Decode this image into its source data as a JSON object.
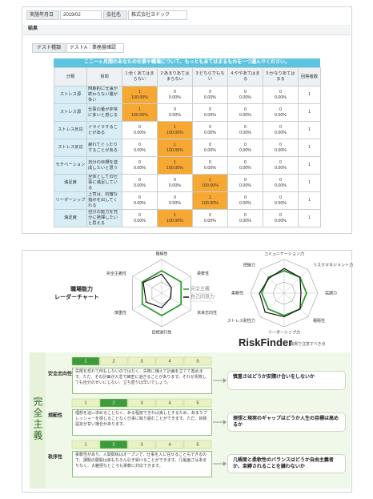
{
  "header": {
    "date_label": "実施年月日",
    "date": "2019/02",
    "company_label": "会社名",
    "company": "株式会社ヨドック"
  },
  "section_label": "結果",
  "test": {
    "label": "テスト種類",
    "value": "テストA：業務量確認"
  },
  "table": {
    "title": "ここ一ヶ月間のあなたの仕事や職場について、もっともあてはまるものを一つ選んでください。",
    "columns": [
      "分類",
      "質問",
      "1:全くあてはまらない",
      "2:あまりあてはまらない",
      "3:どちらでもない",
      "4:ややあてはまる",
      "5:かなりあてはまる",
      "回答者数"
    ],
    "rows": [
      {
        "category": "ストレス源",
        "question": "時期的に仕事が終わらない量が多い",
        "counts": [
          1,
          0,
          0,
          0,
          0
        ],
        "percents": [
          "100.00%",
          "0.00%",
          "0.00%",
          "0.00%",
          "0.00%"
        ],
        "respondents": 1
      },
      {
        "category": "ストレス源",
        "question": "仕事の量が非常に多いと感じる",
        "counts": [
          1,
          0,
          0,
          0,
          0
        ],
        "percents": [
          "100.00%",
          "0.00%",
          "0.00%",
          "0.00%",
          "0.00%"
        ],
        "respondents": 1
      },
      {
        "category": "ストレス反応",
        "question": "イライラすることがある",
        "counts": [
          0,
          1,
          0,
          0,
          0
        ],
        "percents": [
          "0.00%",
          "100.00%",
          "0.00%",
          "0.00%",
          "0.00%"
        ],
        "respondents": 1
      },
      {
        "category": "ストレス反応",
        "question": "疲れてぐったりすることがある",
        "counts": [
          0,
          1,
          0,
          0,
          0
        ],
        "percents": [
          "0.00%",
          "100.00%",
          "0.00%",
          "0.00%",
          "0.00%"
        ],
        "respondents": 1
      },
      {
        "category": "モチベーション",
        "question": "自分の目標を達成したいと思う",
        "counts": [
          0,
          1,
          0,
          0,
          0
        ],
        "percents": [
          "0.00%",
          "100.00%",
          "0.00%",
          "0.00%",
          "0.00%"
        ],
        "respondents": 1
      },
      {
        "category": "満足度",
        "question": "全体としての仕事に満足している",
        "counts": [
          0,
          0,
          1,
          0,
          0
        ],
        "percents": [
          "0.00%",
          "0.00%",
          "100.00%",
          "0.00%",
          "0.00%"
        ],
        "respondents": 1
      },
      {
        "category": "リーダーシップ",
        "question": "上司は、的確な指示を出してくれる",
        "counts": [
          0,
          0,
          1,
          0,
          0
        ],
        "percents": [
          "0.00%",
          "0.00%",
          "100.00%",
          "0.00%",
          "0.00%"
        ],
        "respondents": 1
      },
      {
        "category": "満足度",
        "question": "自分の能力を充分に発揮したいと思える",
        "counts": [
          0,
          1,
          0,
          0,
          0
        ],
        "percents": [
          "0.00%",
          "100.00%",
          "0.00%",
          "0.00%",
          "0.00%"
        ],
        "respondents": 1
      }
    ]
  },
  "chart_data": [
    {
      "type": "radar",
      "title": [
        "職場能力",
        "レーダーチャート"
      ],
      "categories": [
        "積極性",
        "柔軟性",
        "未来志向性",
        "目標遂行性",
        "慎重性",
        "完全主義性"
      ],
      "rlim": [
        0,
        3
      ],
      "rticks": [
        1,
        2,
        3
      ],
      "legend": true,
      "series": [
        {
          "name": "完全主義",
          "color": "#2e9b2e",
          "values": [
            2,
            2,
            2,
            2,
            2,
            2
          ]
        },
        {
          "name": "自己同意力",
          "color": "#111111",
          "values": [
            1.7,
            1.0,
            0.9,
            1.3,
            1.6,
            1.9
          ]
        }
      ]
    },
    {
      "type": "radar",
      "categories": [
        "コミュニケーション力",
        "リスクマネジメント力",
        "協調力",
        "積極性",
        "リーダーシップ力",
        "ストレス耐性力",
        "柔軟性",
        "把握力"
      ],
      "rlim": [
        0,
        3
      ],
      "rticks": [
        1,
        2,
        3
      ],
      "legend": false,
      "series": [
        {
          "color": "#2e9b2e",
          "values": [
            2,
            2,
            2,
            2,
            2,
            2,
            2,
            2
          ]
        },
        {
          "color": "#111111",
          "values": [
            2.2,
            2.0,
            1.5,
            2.0,
            2.1,
            2.4,
            2.2,
            1.9
          ]
        }
      ]
    }
  ],
  "risk_finder": {
    "title": "RiskFinder",
    "subtitle": "職場で注意すべき点",
    "group": "完全主義",
    "scale": [
      1,
      2,
      3,
      4,
      5
    ],
    "items": [
      {
        "name": "安全志向性",
        "level": 1,
        "description": "失敗を恐れて何もしないのではなく、失敗に備えて計画を立てて進めます。ただ、その計画が入念で綿密に過ぎることがあります。それが失敗しても自分のせいにしない、立ち直りは早いでしょう。",
        "point": "慎重さはどうか安請け合いをしないか"
      },
      {
        "name": "規範性",
        "level": 2,
        "description": "理想を追い求めることなく、ある程度できれば良しとするため、あまりプレッシャーを感じることなく仕事に取り組むことができます。ただ、目標設定が甘い場合があります。",
        "point": "理想と現実のギャップはどうか人生の目標は高めるか"
      },
      {
        "name": "秩序性",
        "level": 2,
        "description": "柔軟性があり、人間関係はオープンで、仕事を人に任せることもできるので、課題の展開は良もちろん引き受けることができます。几帳面さはあまりなく、大雑把なところも柔軟に対応できます。",
        "point": "几帳面と柔軟性のバランスはどうか自由主義者か、束縛されることを嫌わないか"
      }
    ]
  }
}
